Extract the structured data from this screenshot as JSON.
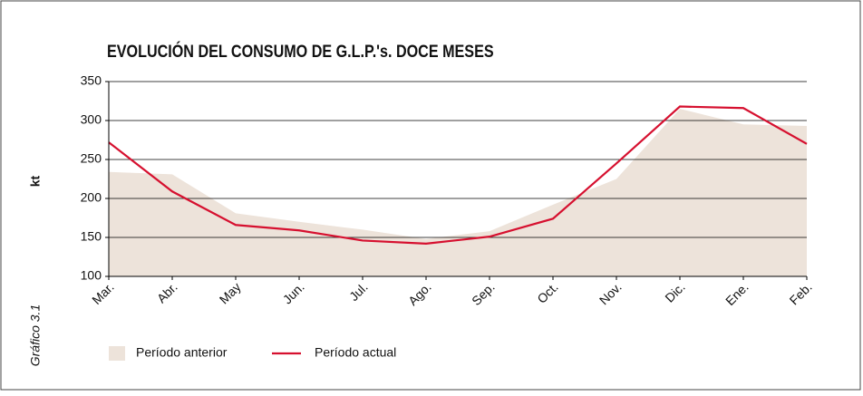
{
  "chart_data": {
    "type": "line",
    "title": "EVOLUCIÓN DEL CONSUMO DE G.L.P.'s. DOCE MESES",
    "y_label": "kt",
    "caption": "Gráfico 3.1",
    "categories": [
      "Mar.",
      "Abr.",
      "May",
      "Jun.",
      "Jul.",
      "Ago.",
      "Sep.",
      "Oct.",
      "Nov.",
      "Dic.",
      "Ene.",
      "Feb."
    ],
    "series": [
      {
        "name": "Período anterior",
        "style": "area",
        "color": "#ede3da",
        "values": [
          234,
          231,
          181,
          170,
          160,
          148,
          158,
          192,
          225,
          315,
          295,
          293
        ]
      },
      {
        "name": "Período actual",
        "style": "line",
        "color": "#d6102f",
        "values": [
          272,
          209,
          166,
          159,
          146,
          142,
          151,
          174,
          245,
          318,
          316,
          270
        ]
      }
    ],
    "ylim": [
      100,
      350
    ],
    "yticks": [
      100,
      150,
      200,
      250,
      300,
      350
    ],
    "grid": true
  }
}
